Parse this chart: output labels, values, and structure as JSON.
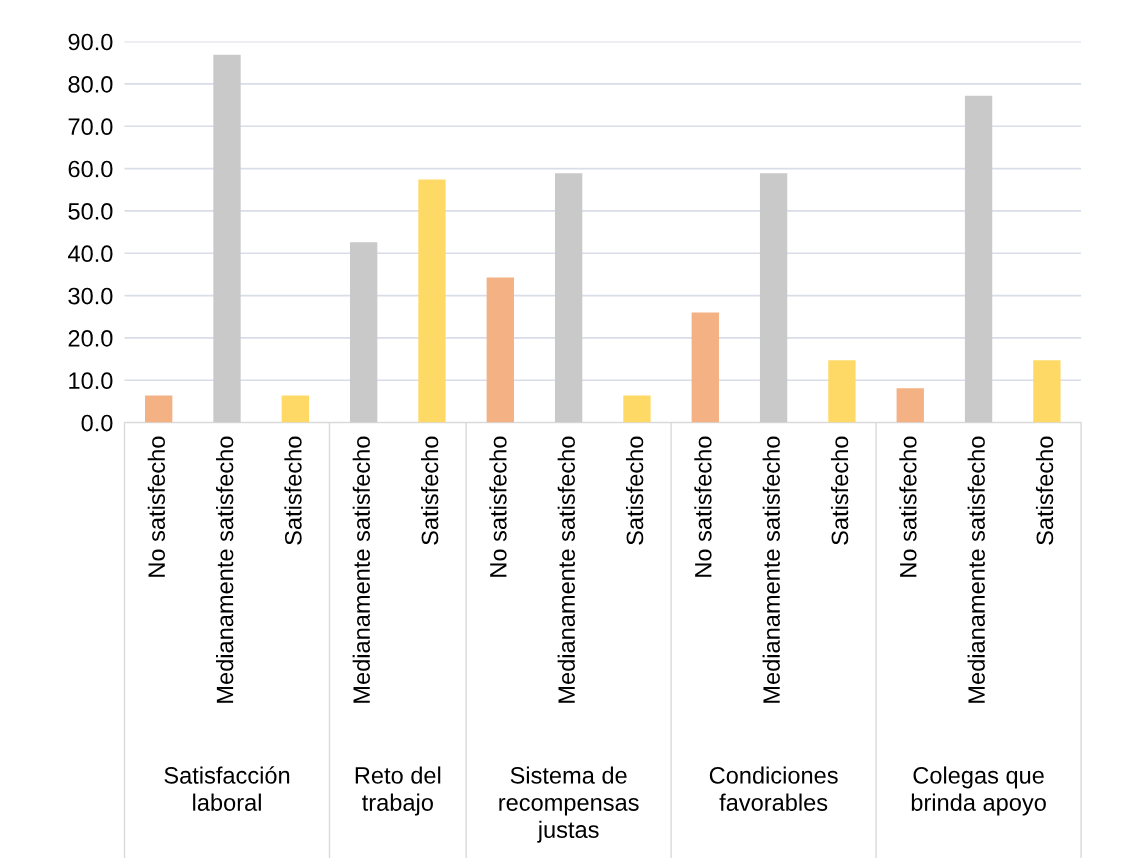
{
  "chart_data": {
    "type": "bar",
    "categories": [
      "No satisfecho",
      "Medianamente satisfecho",
      "Satisfecho",
      "Medianamente satisfecho",
      "Satisfecho",
      "No satisfecho",
      "Medianamente satisfecho",
      "Satisfecho",
      "No satisfecho",
      "Medianamente satisfecho",
      "Satisfecho",
      "No satisfecho",
      "Medianamente satisfecho",
      "Satisfecho"
    ],
    "values": [
      6.4,
      86.9,
      6.4,
      42.6,
      57.4,
      34.3,
      58.9,
      6.4,
      26.0,
      58.9,
      14.7,
      8.1,
      77.2,
      14.7
    ],
    "colors": [
      "#f4b183",
      "#c9c9c9",
      "#ffd966",
      "#c9c9c9",
      "#ffd966",
      "#f4b183",
      "#c9c9c9",
      "#ffd966",
      "#f4b183",
      "#c9c9c9",
      "#ffd966",
      "#f4b183",
      "#c9c9c9",
      "#ffd966"
    ],
    "annotations": [
      "Satisfacción\nlaboral",
      "Reto del\ntrabajo",
      "Sistema de\nrecompensas\njustas",
      "Condiciones\nfavorables",
      "Colegas que\nbrinda apoyo"
    ],
    "ylim": [
      0,
      90
    ],
    "yticks": [
      {
        "value": 0,
        "label": "0.0"
      },
      {
        "value": 10,
        "label": "10.0"
      },
      {
        "value": 20,
        "label": "20.0"
      },
      {
        "value": 30,
        "label": "30.0"
      },
      {
        "value": 40,
        "label": "40.0"
      },
      {
        "value": 50,
        "label": "50.0"
      },
      {
        "value": 60,
        "label": "60.0"
      },
      {
        "value": 70,
        "label": "70.0"
      },
      {
        "value": 80,
        "label": "80.0"
      },
      {
        "value": 90,
        "label": "90.0"
      }
    ],
    "grid": "y"
  }
}
